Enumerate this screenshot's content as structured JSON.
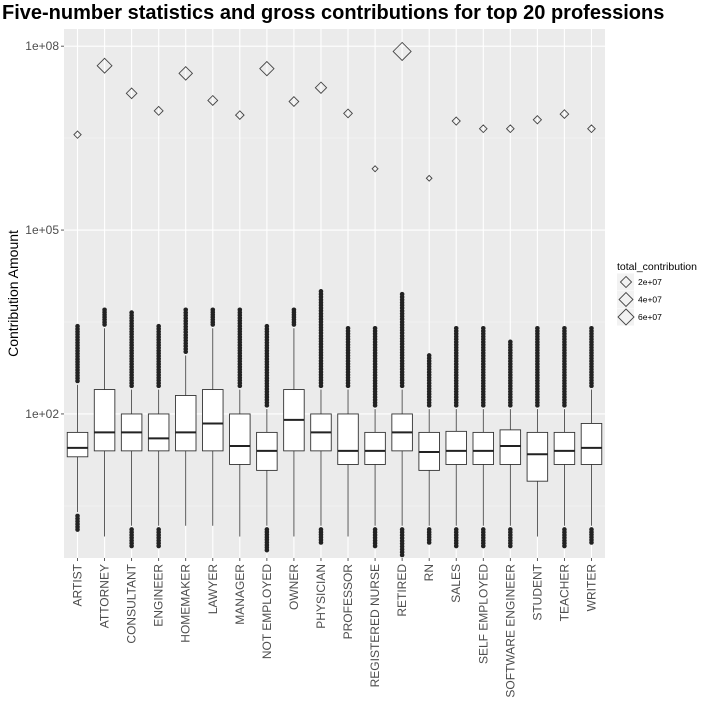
{
  "chart_data": {
    "type": "boxplot",
    "title": "Five-number statistics and gross contributions for top 20 professions",
    "xlabel": "",
    "ylabel": "Contribution Amount",
    "y_scale": "log10",
    "y_ticks": [
      {
        "value": 100,
        "label": "1e+02"
      },
      {
        "value": 100000,
        "label": "1e+05"
      },
      {
        "value": 100000000,
        "label": "1e+08"
      }
    ],
    "ylim_log10": [
      -0.35,
      8.28
    ],
    "grid": true,
    "legend": {
      "title": "total_contribution",
      "placement": "right",
      "entries": [
        {
          "label": "2e+07",
          "value": 20000000
        },
        {
          "label": "4e+07",
          "value": 40000000
        },
        {
          "label": "6e+07",
          "value": 60000000
        }
      ]
    },
    "categories": [
      "ARTIST",
      "ATTORNEY",
      "CONSULTANT",
      "ENGINEER",
      "HOMEMAKER",
      "LAWYER",
      "MANAGER",
      "NOT EMPLOYED",
      "OWNER",
      "PHYSICIAN",
      "PROFESSOR",
      "REGISTERED NURSE",
      "RETIRED",
      "RN",
      "SALES",
      "SELF EMPLOYED",
      "SOFTWARE ENGINEER",
      "STUDENT",
      "TEACHER",
      "WRITER"
    ],
    "boxes": [
      {
        "min": 2.5,
        "q1": 20,
        "median": 28,
        "q3": 50,
        "max": 300,
        "outlier_low": 1.3,
        "outlier_high": 2700
      },
      {
        "min": 1.0,
        "q1": 25,
        "median": 50,
        "q3": 250,
        "max": 2500,
        "outlier_low": null,
        "outlier_high": 5000
      },
      {
        "min": 1.5,
        "q1": 25,
        "median": 50,
        "q3": 100,
        "max": 250,
        "outlier_low": 0.7,
        "outlier_high": 4500
      },
      {
        "min": 1.5,
        "q1": 25,
        "median": 40,
        "q3": 100,
        "max": 250,
        "outlier_low": 0.7,
        "outlier_high": 2700
      },
      {
        "min": 1.5,
        "q1": 25,
        "median": 50,
        "q3": 200,
        "max": 900,
        "outlier_low": null,
        "outlier_high": 5000
      },
      {
        "min": 1.5,
        "q1": 25,
        "median": 70,
        "q3": 250,
        "max": 2500,
        "outlier_low": null,
        "outlier_high": 5000
      },
      {
        "min": 1.0,
        "q1": 15,
        "median": 30,
        "q3": 100,
        "max": 250,
        "outlier_low": null,
        "outlier_high": 5000
      },
      {
        "min": 1.5,
        "q1": 12,
        "median": 25,
        "q3": 50,
        "max": 120,
        "outlier_low": 0.6,
        "outlier_high": 2700
      },
      {
        "min": 1.0,
        "q1": 25,
        "median": 80,
        "q3": 250,
        "max": 2500,
        "outlier_low": null,
        "outlier_high": 5000
      },
      {
        "min": 1.5,
        "q1": 25,
        "median": 50,
        "q3": 100,
        "max": 250,
        "outlier_low": 0.8,
        "outlier_high": 10000
      },
      {
        "min": 1.0,
        "q1": 15,
        "median": 25,
        "q3": 100,
        "max": 250,
        "outlier_low": null,
        "outlier_high": 2500
      },
      {
        "min": 1.5,
        "q1": 15,
        "median": 25,
        "q3": 50,
        "max": 120,
        "outlier_low": 0.7,
        "outlier_high": 2500
      },
      {
        "min": 1.5,
        "q1": 25,
        "median": 50,
        "q3": 100,
        "max": 250,
        "outlier_low": 0.5,
        "outlier_high": 9000
      },
      {
        "min": 1.5,
        "q1": 12,
        "median": 24,
        "q3": 50,
        "max": 120,
        "outlier_low": 0.8,
        "outlier_high": 900
      },
      {
        "min": 1.5,
        "q1": 15,
        "median": 25,
        "q3": 52,
        "max": 120,
        "outlier_low": 0.7,
        "outlier_high": 2500
      },
      {
        "min": 1.5,
        "q1": 15,
        "median": 25,
        "q3": 50,
        "max": 120,
        "outlier_low": 0.7,
        "outlier_high": 2500
      },
      {
        "min": 1.5,
        "q1": 15,
        "median": 30,
        "q3": 55,
        "max": 120,
        "outlier_low": 0.7,
        "outlier_high": 1500
      },
      {
        "min": 1.0,
        "q1": 8,
        "median": 22,
        "q3": 50,
        "max": 120,
        "outlier_low": null,
        "outlier_high": 2500
      },
      {
        "min": 1.5,
        "q1": 15,
        "median": 25,
        "q3": 50,
        "max": 120,
        "outlier_low": 0.7,
        "outlier_high": 2500
      },
      {
        "min": 1.5,
        "q1": 15,
        "median": 28,
        "q3": 70,
        "max": 250,
        "outlier_low": 0.8,
        "outlier_high": 2500
      }
    ],
    "totals": [
      {
        "category": "ARTIST",
        "value": 3600000
      },
      {
        "category": "ATTORNEY",
        "value": 48000000
      },
      {
        "category": "CONSULTANT",
        "value": 17000000
      },
      {
        "category": "ENGINEER",
        "value": 8800000
      },
      {
        "category": "HOMEMAKER",
        "value": 36000000
      },
      {
        "category": "LAWYER",
        "value": 13000000
      },
      {
        "category": "MANAGER",
        "value": 7500000
      },
      {
        "category": "NOT EMPLOYED",
        "value": 43000000
      },
      {
        "category": "OWNER",
        "value": 12500000
      },
      {
        "category": "PHYSICIAN",
        "value": 21000000
      },
      {
        "category": "PROFESSOR",
        "value": 8000000
      },
      {
        "category": "REGISTERED NURSE",
        "value": 1000000
      },
      {
        "category": "RETIRED",
        "value": 82000000
      },
      {
        "category": "RN",
        "value": 700000
      },
      {
        "category": "SALES",
        "value": 6000000
      },
      {
        "category": "SELF EMPLOYED",
        "value": 4500000
      },
      {
        "category": "SOFTWARE ENGINEER",
        "value": 4500000
      },
      {
        "category": "STUDENT",
        "value": 6300000
      },
      {
        "category": "TEACHER",
        "value": 7800000
      },
      {
        "category": "WRITER",
        "value": 4500000
      }
    ]
  }
}
